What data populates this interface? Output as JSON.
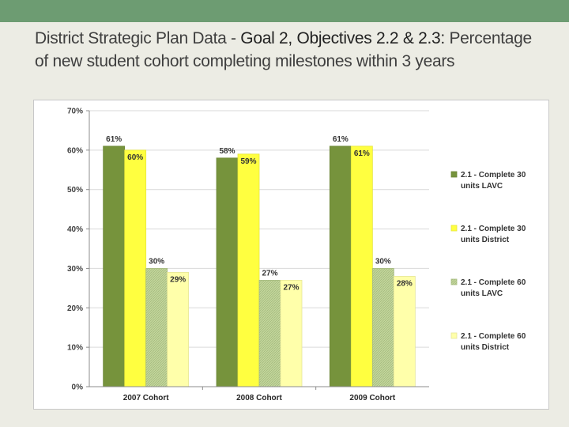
{
  "title": {
    "prefix": "District Strategic Plan Data - ",
    "highlight": "Goal 2, Objectives 2.2 & 2.3:",
    "rest": "Percentage of new student cohort completing milestones within 3 years"
  },
  "colors": {
    "top_bar": "#6d9c72",
    "series": [
      "#76933c",
      "#ffff40",
      "#c3d69b",
      "#ffffaa"
    ]
  },
  "chart_data": {
    "type": "bar",
    "categories": [
      "2007 Cohort",
      "2008 Cohort",
      "2009 Cohort"
    ],
    "series": [
      {
        "name": "2.1 - Complete 30 units LAVC",
        "values": [
          61,
          58,
          61
        ],
        "labels": [
          "61%",
          "58%",
          "61%"
        ],
        "legend_lines": [
          "2.1 - Complete 30",
          "units LAVC"
        ]
      },
      {
        "name": "2.1 - Complete 30 units District",
        "values": [
          60,
          59,
          61
        ],
        "labels": [
          "60%",
          "59%",
          "61%"
        ],
        "legend_lines": [
          "2.1 - Complete 30",
          "units District"
        ]
      },
      {
        "name": "2.1 - Complete 60 units LAVC",
        "values": [
          30,
          27,
          30
        ],
        "labels": [
          "30%",
          "27%",
          "30%"
        ],
        "legend_lines": [
          "2.1 - Complete 60",
          "units LAVC"
        ]
      },
      {
        "name": "2.1 - Complete 60 units District",
        "values": [
          29,
          27,
          28
        ],
        "labels": [
          "29%",
          "27%",
          "28%"
        ],
        "legend_lines": [
          "2.1 - Complete 60",
          "units District"
        ]
      }
    ],
    "ylim": [
      0,
      70
    ],
    "yticks": [
      0,
      10,
      20,
      30,
      40,
      50,
      60,
      70
    ],
    "ytick_labels": [
      "0%",
      "10%",
      "20%",
      "30%",
      "40%",
      "50%",
      "60%",
      "70%"
    ],
    "grid": true,
    "legend_position": "right"
  }
}
